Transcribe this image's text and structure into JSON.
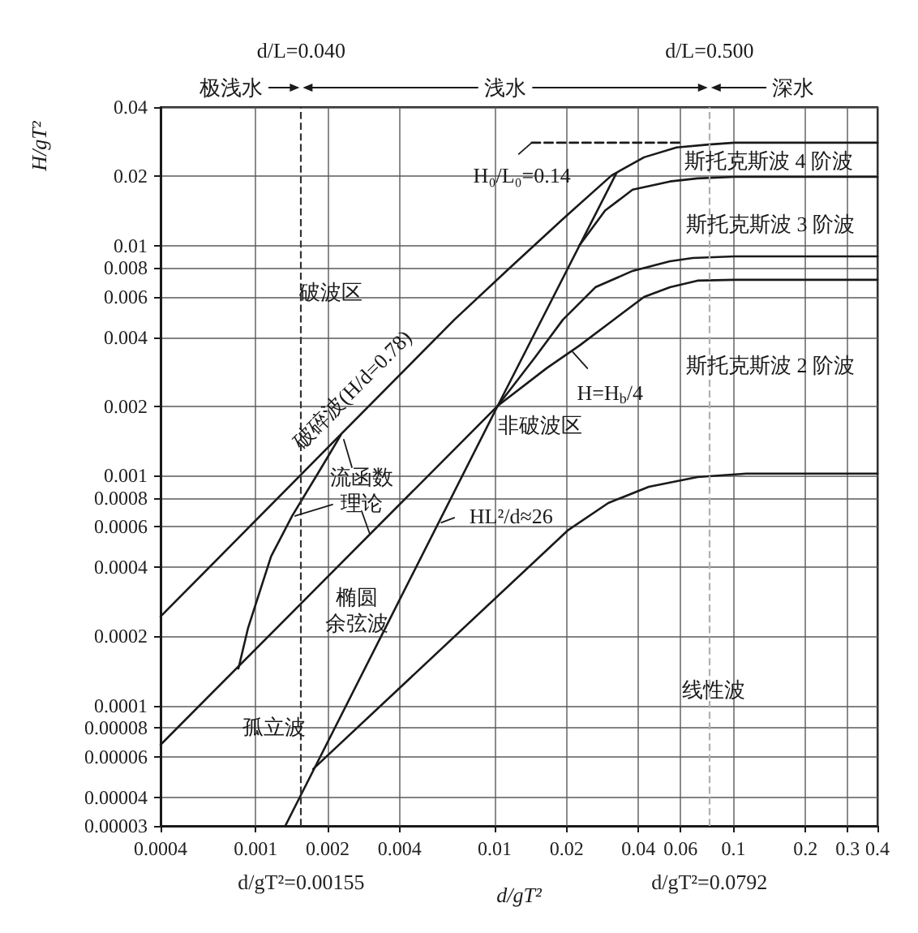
{
  "chart_data": {
    "type": "line",
    "xlabel": "d/gT²",
    "ylabel": "H/gT²",
    "log": "xy",
    "xlim": [
      0.0004,
      0.4
    ],
    "ylim": [
      3e-05,
      0.04
    ],
    "xticks": [
      0.0004,
      0.001,
      0.002,
      0.004,
      0.01,
      0.02,
      0.04,
      0.06,
      0.1,
      0.2,
      0.3,
      0.4
    ],
    "yticks": [
      {
        "value": 3e-05,
        "label": "0.00003"
      },
      {
        "value": 4e-05,
        "label": "0.00004"
      },
      {
        "value": 6e-05,
        "label": "0.00006"
      },
      {
        "value": 8e-05,
        "label": "0.00008"
      },
      {
        "value": 0.0001,
        "label": "0.0001"
      },
      0.0002,
      0.0004,
      0.0006,
      0.0008,
      0.001,
      0.002,
      0.004,
      0.006,
      0.008,
      0.01,
      0.02,
      0.04
    ],
    "grid": true,
    "series": [
      {
        "color": "#1a1a1a",
        "x": [
          0.0004,
          0.00678,
          0.0114,
          0.0193,
          0.0309,
          0.0422,
          0.0577,
          0.0788,
          0.101,
          0.4
        ],
        "values": [
          0.000244,
          0.00476,
          0.00788,
          0.01305,
          0.0202,
          0.0242,
          0.0267,
          0.0275,
          0.028,
          0.028
        ]
      },
      {
        "color": "#1a1a1a",
        "line_style": "dashed",
        "x": [
          0.0143,
          0.0604
        ],
        "values": [
          0.028,
          0.028
        ]
      },
      {
        "color": "#1a1a1a",
        "x": [
          0.0226,
          0.029,
          0.0378,
          0.0542,
          0.0706,
          0.101,
          0.4
        ],
        "values": [
          0.01,
          0.0142,
          0.0175,
          0.019,
          0.0196,
          0.0199,
          0.0199
        ]
      },
      {
        "color": "#1a1a1a",
        "x": [
          0.0103,
          0.0148,
          0.0193,
          0.0264,
          0.0378,
          0.0542,
          0.0674,
          0.101,
          0.4
        ],
        "values": [
          0.00201,
          0.00328,
          0.00476,
          0.00659,
          0.00776,
          0.00855,
          0.00883,
          0.00898,
          0.00898
        ]
      },
      {
        "color": "#1a1a1a",
        "x": [
          0.0004,
          0.0103,
          0.0165,
          0.0226,
          0.0309,
          0.0422,
          0.0542,
          0.0706,
          0.101,
          0.4
        ],
        "values": [
          6.76e-05,
          0.00201,
          0.00293,
          0.00367,
          0.00469,
          0.00598,
          0.00659,
          0.00704,
          0.0071,
          0.0071
        ]
      },
      {
        "color": "#1a1a1a",
        "x": [
          0.00174,
          0.0202,
          0.0299,
          0.0442,
          0.0706,
          0.113,
          0.4
        ],
        "values": [
          5.3e-05,
          0.000577,
          0.00076,
          0.000894,
          0.000986,
          0.00102,
          0.00102
        ]
      },
      {
        "color": "#1a1a1a",
        "x": [
          0.00133,
          0.0103,
          0.0323
        ],
        "values": [
          3e-05,
          0.00201,
          0.0206
        ]
      },
      {
        "color": "#1a1a1a",
        "x": [
          0.000847,
          0.00093,
          0.00116,
          0.00142,
          0.00185,
          0.00227
        ],
        "values": [
          0.000145,
          0.000218,
          0.000445,
          0.000667,
          0.00105,
          0.0015
        ]
      }
    ],
    "ref_lines": [
      {
        "axis": "x",
        "value": 0.00155,
        "label": "d/gT²=0.00155",
        "color": "#333333",
        "line_style": "dashed"
      },
      {
        "axis": "x",
        "value": 0.0792,
        "label": "d/gT²=0.0792",
        "color": "#b0b0b0",
        "line_style": "dashed"
      }
    ],
    "annotations": [
      "破波区",
      "非破波区",
      "线性波",
      "孤立波",
      "椭圆余弦波",
      "流函数理论",
      "斯托克斯波 4 阶波",
      "斯托克斯波 3 阶波",
      "斯托克斯波 2 阶波",
      {
        "text": "H=H$_{b}$/4",
        "x": 0.0209,
        "y": 0.0035
      },
      {
        "text": "HL²/d≈26",
        "x": 0.0058,
        "y": 0.000625
      },
      {
        "text": "H₀/L₀=0.14",
        "x": 0.0143,
        "y": 0.028
      },
      {
        "text": "破碎波(H/d=0.78)",
        "x": 0.00253,
        "y": 0.00174
      },
      "d/L=0.040",
      "d/L=0.500",
      "极浅水",
      "浅水",
      "深水"
    ]
  }
}
